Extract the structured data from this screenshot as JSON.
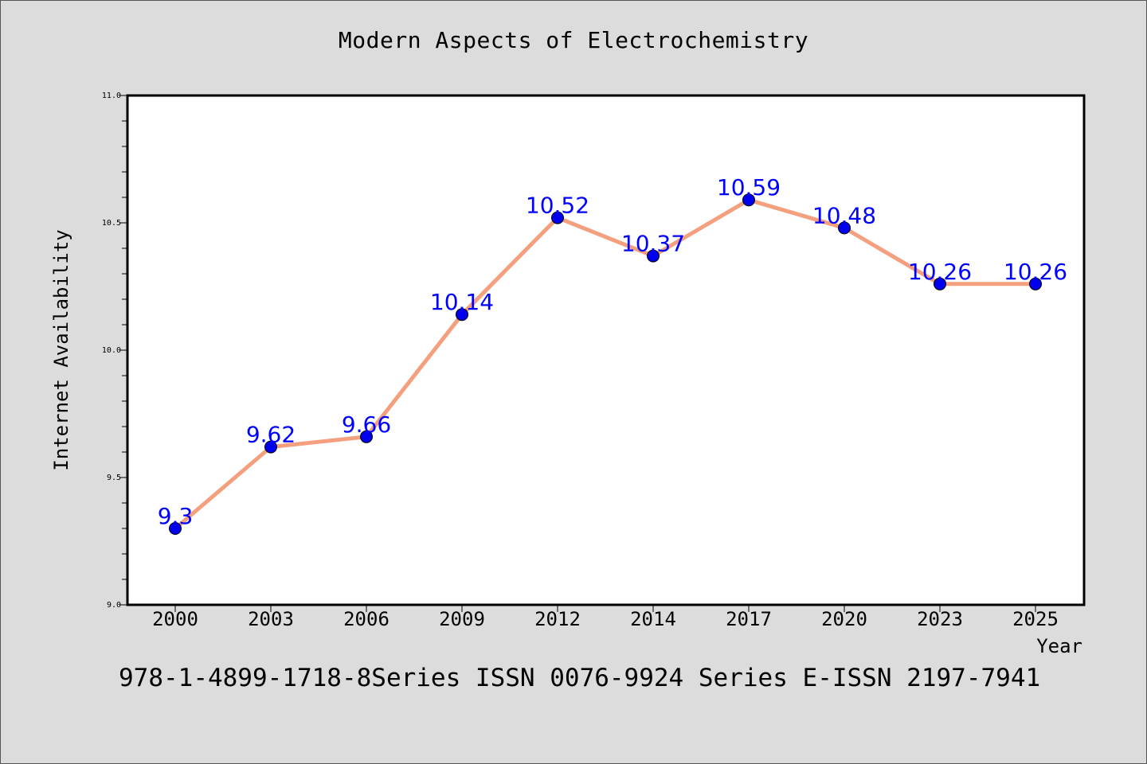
{
  "chart_data": {
    "type": "line",
    "title": "Modern Aspects of Electrochemistry",
    "xlabel": "Year",
    "ylabel": "Internet Availability",
    "categories": [
      "2000",
      "2003",
      "2006",
      "2009",
      "2012",
      "2014",
      "2017",
      "2020",
      "2023",
      "2025"
    ],
    "values": [
      9.3,
      9.62,
      9.66,
      10.14,
      10.52,
      10.37,
      10.59,
      10.48,
      10.26,
      10.26
    ],
    "data_labels": [
      "9.3",
      "9.62",
      "9.66",
      "10.14",
      "10.52",
      "10.37",
      "10.59",
      "10.48",
      "10.26",
      "10.26"
    ],
    "ylim": [
      9.0,
      11.0
    ],
    "yticks": [
      "9.0",
      "9.5",
      "10.0",
      "10.5",
      "11.0"
    ],
    "grid": false,
    "line_color": "#f4a07e",
    "marker_color": "#0000ee",
    "label_color": "#0000ff",
    "background": "#dcdcdc",
    "plot_background": "#ffffff"
  },
  "footer": {
    "text": "978-1-4899-1718-8Series ISSN 0076-9924 Series E-ISSN 2197-7941"
  }
}
